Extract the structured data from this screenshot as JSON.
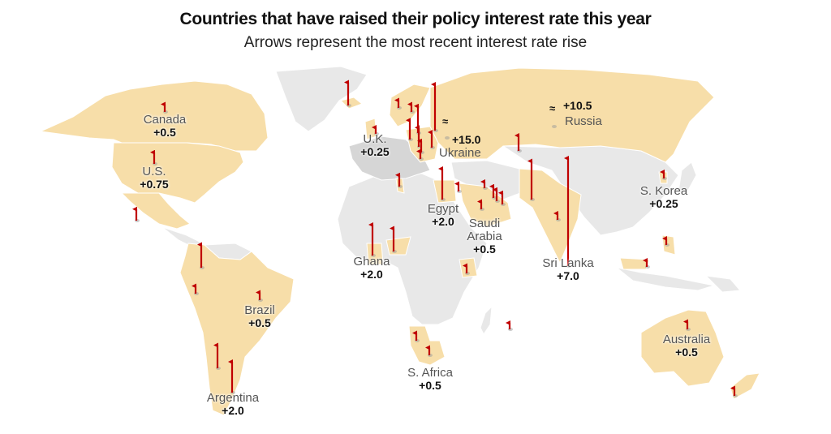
{
  "header": {
    "title": "Countries that have raised their policy interest rate this year",
    "subtitle": "Arrows represent the most recent interest rate rise"
  },
  "colors": {
    "raised": "#f7dea9",
    "not_raised": "#e8e8e8",
    "arrow": "#c00000",
    "europe_dark": "#d6d6d6"
  },
  "labels": [
    {
      "country": "Canada",
      "value": "+0.5"
    },
    {
      "country": "U.S.",
      "value": "+0.75"
    },
    {
      "country": "U.K.",
      "value": "+0.25"
    },
    {
      "country": "Ukraine",
      "value": "+15.0"
    },
    {
      "country": "Russia",
      "value": "+10.5"
    },
    {
      "country": "Egypt",
      "value": "+2.0"
    },
    {
      "country": "Saudi Arabia",
      "value": "+0.5"
    },
    {
      "country": "Ghana",
      "value": "+2.0"
    },
    {
      "country": "S. Korea",
      "value": "+0.25"
    },
    {
      "country": "Sri Lanka",
      "value": "+7.0"
    },
    {
      "country": "Brazil",
      "value": "+0.5"
    },
    {
      "country": "Argentina",
      "value": "+2.0"
    },
    {
      "country": "S. Africa",
      "value": "+0.5"
    },
    {
      "country": "Australia",
      "value": "+0.5"
    }
  ],
  "break_symbol": "≈",
  "arrows": [
    {
      "region": "Canada",
      "rise": 0.5
    },
    {
      "region": "U.S.",
      "rise": 0.75
    },
    {
      "region": "Mexico",
      "rise": 0.75
    },
    {
      "region": "Iceland",
      "rise": 1.5
    },
    {
      "region": "Norway",
      "rise": 0.5
    },
    {
      "region": "U.K.",
      "rise": 0.25
    },
    {
      "region": "Sweden",
      "rise": 0.5
    },
    {
      "region": "Czech Republic",
      "rise": 1.25
    },
    {
      "region": "Poland",
      "rise": 1.75
    },
    {
      "region": "Hungary",
      "rise": 1.25
    },
    {
      "region": "Romania",
      "rise": 0.75
    },
    {
      "region": "Serbia",
      "rise": 0.5
    },
    {
      "region": "Moldova",
      "rise": 1.0
    },
    {
      "region": "Belarus",
      "rise": 3.0
    },
    {
      "region": "Ukraine",
      "rise": 15.0
    },
    {
      "region": "Russia",
      "rise": 10.5
    },
    {
      "region": "Kazakhstan",
      "rise": 1.0
    },
    {
      "region": "Tunisia",
      "rise": 0.75
    },
    {
      "region": "Egypt",
      "rise": 2.0
    },
    {
      "region": "Jordan",
      "rise": 0.5
    },
    {
      "region": "Kuwait",
      "rise": 0.25
    },
    {
      "region": "Bahrain",
      "rise": 0.75
    },
    {
      "region": "Qatar",
      "rise": 0.75
    },
    {
      "region": "UAE",
      "rise": 0.75
    },
    {
      "region": "Saudi Arabia",
      "rise": 0.5
    },
    {
      "region": "Pakistan",
      "rise": 2.5
    },
    {
      "region": "India",
      "rise": 0.4
    },
    {
      "region": "Sri Lanka",
      "rise": 7.0
    },
    {
      "region": "Ghana",
      "rise": 2.0
    },
    {
      "region": "Nigeria",
      "rise": 1.5
    },
    {
      "region": "Kenya",
      "rise": 0.5
    },
    {
      "region": "S. Korea",
      "rise": 0.25
    },
    {
      "region": "Philippines",
      "rise": 0.25
    },
    {
      "region": "Malaysia",
      "rise": 0.25
    },
    {
      "region": "Colombia",
      "rise": 1.5
    },
    {
      "region": "Peru",
      "rise": 0.5
    },
    {
      "region": "Brazil",
      "rise": 0.5
    },
    {
      "region": "Chile",
      "rise": 1.5
    },
    {
      "region": "Argentina",
      "rise": 2.0
    },
    {
      "region": "Namibia",
      "rise": 0.5
    },
    {
      "region": "S. Africa",
      "rise": 0.5
    },
    {
      "region": "Mauritius",
      "rise": 0.25
    },
    {
      "region": "Australia",
      "rise": 0.5
    },
    {
      "region": "New Zealand",
      "rise": 0.5
    }
  ]
}
